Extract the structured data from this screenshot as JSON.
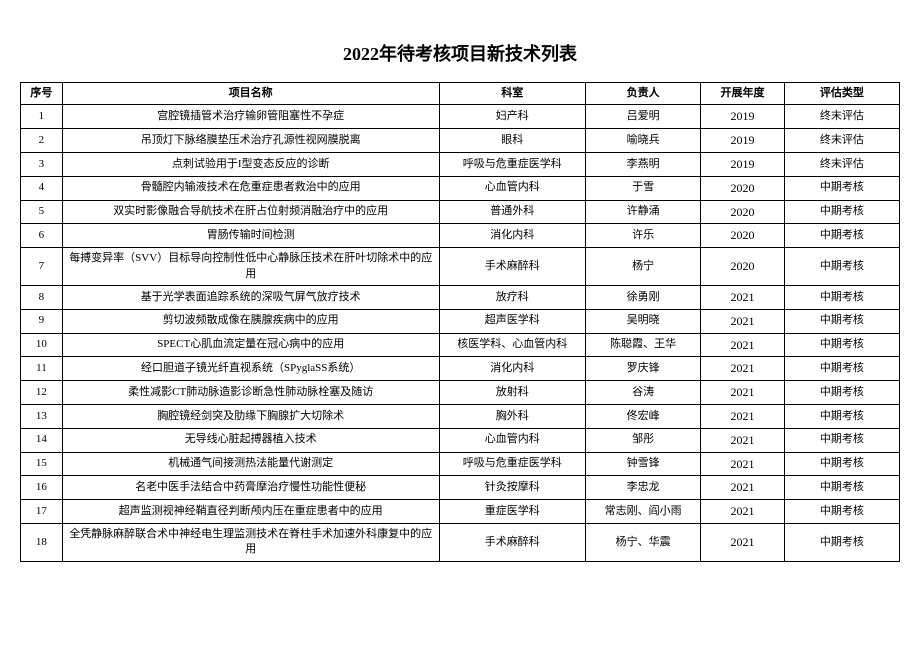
{
  "title": "2022年待考核项目新技术列表",
  "columns": [
    "序号",
    "项目名称",
    "科室",
    "负责人",
    "开展年度",
    "评估类型"
  ],
  "rows": [
    {
      "seq": "1",
      "name": "宫腔镜插管术治疗输卵管阻塞性不孕症",
      "dept": "妇产科",
      "person": "吕爱明",
      "year": "2019",
      "type": "终末评估"
    },
    {
      "seq": "2",
      "name": "吊顶灯下脉络膜垫压术治疗孔源性视网膜脱离",
      "dept": "眼科",
      "person": "喻晓兵",
      "year": "2019",
      "type": "终末评估"
    },
    {
      "seq": "3",
      "name": "点刺试验用于I型变态反应的诊断",
      "dept": "呼吸与危重症医学科",
      "person": "李燕明",
      "year": "2019",
      "type": "终末评估"
    },
    {
      "seq": "4",
      "name": "骨髓腔内输液技术在危重症患者救治中的应用",
      "dept": "心血管内科",
      "person": "于雪",
      "year": "2020",
      "type": "中期考核"
    },
    {
      "seq": "5",
      "name": "双实时影像融合导航技术在肝占位射频消融治疗中的应用",
      "dept": "普通外科",
      "person": "许静涌",
      "year": "2020",
      "type": "中期考核"
    },
    {
      "seq": "6",
      "name": "胃肠传输时间检测",
      "dept": "消化内科",
      "person": "许乐",
      "year": "2020",
      "type": "中期考核"
    },
    {
      "seq": "7",
      "name": "每搏变异率（SVV）目标导向控制性低中心静脉压技术在肝叶切除术中的应用",
      "dept": "手术麻醉科",
      "person": "杨宁",
      "year": "2020",
      "type": "中期考核"
    },
    {
      "seq": "8",
      "name": "基于光学表面追踪系统的深吸气屏气放疗技术",
      "dept": "放疗科",
      "person": "徐勇刚",
      "year": "2021",
      "type": "中期考核"
    },
    {
      "seq": "9",
      "name": "剪切波频散成像在胰腺疾病中的应用",
      "dept": "超声医学科",
      "person": "吴明晓",
      "year": "2021",
      "type": "中期考核"
    },
    {
      "seq": "10",
      "name": "SPECT心肌血流定量在冠心病中的应用",
      "dept": "核医学科、心血管内科",
      "person": "陈聪霞、王华",
      "year": "2021",
      "type": "中期考核"
    },
    {
      "seq": "11",
      "name": "经口胆道子镜光纤直视系统（SPyglaSS系统）",
      "dept": "消化内科",
      "person": "罗庆锋",
      "year": "2021",
      "type": "中期考核"
    },
    {
      "seq": "12",
      "name": "柔性减影CT肺动脉造影诊断急性肺动脉栓塞及随访",
      "dept": "放射科",
      "person": "谷涛",
      "year": "2021",
      "type": "中期考核"
    },
    {
      "seq": "13",
      "name": "胸腔镜经剑突及肋缘下胸腺扩大切除术",
      "dept": "胸外科",
      "person": "佟宏峰",
      "year": "2021",
      "type": "中期考核"
    },
    {
      "seq": "14",
      "name": "无导线心脏起搏器植入技术",
      "dept": "心血管内科",
      "person": "邹彤",
      "year": "2021",
      "type": "中期考核"
    },
    {
      "seq": "15",
      "name": "机械通气间接测热法能量代谢测定",
      "dept": "呼吸与危重症医学科",
      "person": "钟雪锋",
      "year": "2021",
      "type": "中期考核"
    },
    {
      "seq": "16",
      "name": "名老中医手法结合中药膏摩治疗慢性功能性便秘",
      "dept": "针灸按摩科",
      "person": "李忠龙",
      "year": "2021",
      "type": "中期考核"
    },
    {
      "seq": "17",
      "name": "超声监测视神经鞘直径判断颅内压在重症患者中的应用",
      "dept": "重症医学科",
      "person": "常志刚、阎小雨",
      "year": "2021",
      "type": "中期考核"
    },
    {
      "seq": "18",
      "name": "全凭静脉麻醉联合术中神经电生理监测技术在脊柱手术加速外科康复中的应用",
      "dept": "手术麻醉科",
      "person": "杨宁、华震",
      "year": "2021",
      "type": "中期考核"
    }
  ]
}
